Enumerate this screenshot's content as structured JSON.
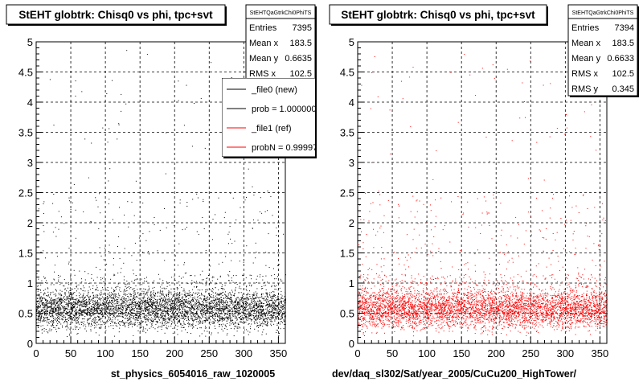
{
  "panels": [
    {
      "title": "StEHT globtrk: Chisq0 vs phi, tpc+svt",
      "stats": {
        "name": "StEHTQaGtrkChi0PhiTS",
        "rows": [
          {
            "label": "Entries",
            "value": "7395"
          },
          {
            "label": "Mean x",
            "value": "183.5"
          },
          {
            "label": "Mean y",
            "value": "0.6635"
          },
          {
            "label": "RMS x",
            "value": "102.5"
          }
        ]
      },
      "legend": [
        {
          "label": "_file0 (new)",
          "color": "#000000"
        },
        {
          "label": "prob = 1.000000",
          "color": "#000000"
        },
        {
          "label": "_file1 (ref)",
          "color": "#ff0000"
        },
        {
          "label": "probN = 0.999970",
          "color": "#ff0000"
        }
      ],
      "caption": "st_physics_6054016_raw_1020005",
      "marker_color": "#000000"
    },
    {
      "title": "StEHT globtrk: Chisq0 vs phi, tpc+svt",
      "stats": {
        "name": "StEHTQaGtrkChi0PhiTS",
        "rows": [
          {
            "label": "Entries",
            "value": "7394"
          },
          {
            "label": "Mean x",
            "value": "183.5"
          },
          {
            "label": "Mean y",
            "value": "0.6633"
          },
          {
            "label": "RMS x",
            "value": "102.5"
          },
          {
            "label": "RMS y",
            "value": "0.345"
          }
        ]
      },
      "legend": [],
      "caption": "dev/daq_sl302/Sat/year_2005/CuCu200_HighTower/",
      "marker_color": "#ff0000"
    }
  ],
  "chart_data": [
    {
      "type": "scatter",
      "title": "StEHT globtrk: Chisq0 vs phi, tpc+svt",
      "xlabel": "st_physics_6054016_raw_1020005",
      "ylabel": "",
      "xlim": [
        0,
        360
      ],
      "ylim": [
        0,
        5
      ],
      "x_ticks": [
        0,
        50,
        100,
        150,
        200,
        250,
        300,
        350
      ],
      "y_ticks": [
        0,
        0.5,
        1,
        1.5,
        2,
        2.5,
        3,
        3.5,
        4,
        4.5,
        5
      ],
      "grid": true,
      "entries": 7395,
      "mean_x": 183.5,
      "mean_y": 0.6635,
      "rms_x": 102.5,
      "color": "#000000"
    },
    {
      "type": "scatter",
      "title": "StEHT globtrk: Chisq0 vs phi, tpc+svt",
      "xlabel": "dev/daq_sl302/Sat/year_2005/CuCu200_HighTower/",
      "ylabel": "",
      "xlim": [
        0,
        360
      ],
      "ylim": [
        0,
        5
      ],
      "x_ticks": [
        0,
        50,
        100,
        150,
        200,
        250,
        300,
        350
      ],
      "y_ticks": [
        0,
        0.5,
        1,
        1.5,
        2,
        2.5,
        3,
        3.5,
        4,
        4.5,
        5
      ],
      "grid": true,
      "entries": 7394,
      "mean_x": 183.5,
      "mean_y": 0.6633,
      "rms_x": 102.5,
      "rms_y": 0.345,
      "color": "#ff0000"
    }
  ]
}
